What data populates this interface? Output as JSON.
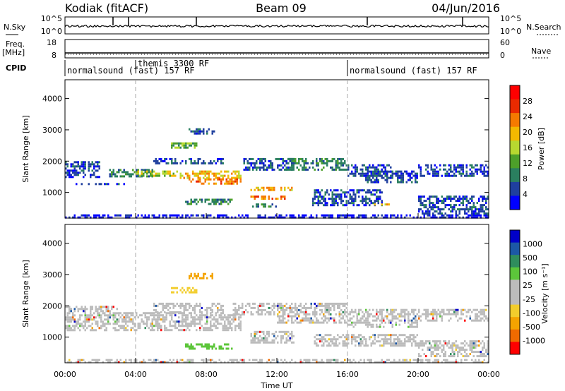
{
  "header": {
    "station": "Kodiak (fitACF)",
    "beam": "Beam 09",
    "date": "04/Jun/2016"
  },
  "colors": {
    "power_scale": [
      "#0000ff",
      "#1f3f9e",
      "#2a7f5f",
      "#4da02a",
      "#b7d830",
      "#f3b800",
      "#f57a00",
      "#ea2a00",
      "#ff0000"
    ],
    "velocity_scale": [
      "#ff0000",
      "#f06a00",
      "#f4a300",
      "#f2cd2c",
      "#bcbcbc",
      "#bcbcbc",
      "#5cc63a",
      "#2f8d5d",
      "#1c58a6",
      "#0000c8"
    ],
    "gridline": "#999999"
  },
  "panels": {
    "nsky": {
      "label": "N.Sky",
      "left_ticks": [
        "10^5",
        "10^0"
      ],
      "right_ticks": [
        "10^5",
        "10^0"
      ],
      "right_label": "N.Search"
    },
    "freq": {
      "label": "Freq.",
      "unit": "[MHz]",
      "left_ticks": [
        "18",
        "8"
      ],
      "right_ticks": [
        "60",
        "0"
      ],
      "right_label": "Nave"
    },
    "cpid": {
      "label": "CPID",
      "segments": [
        {
          "text": "normalsound (fast) 157 RF",
          "start_hour": 0
        },
        {
          "text": "themis 3300 RF",
          "start_hour": 4
        },
        {
          "text": "normalsound (fast) 157 RF",
          "start_hour": 16
        }
      ]
    },
    "power": {
      "ylabel": "Slant Range [km]",
      "colorbar_label": "Power [dB]",
      "colorbar_ticks": [
        "28",
        "24",
        "20",
        "16",
        "12",
        "8",
        "4"
      ]
    },
    "velocity": {
      "ylabel": "Slant Range [km]",
      "colorbar_label": "Velocity [m s⁻¹]",
      "colorbar_ticks": [
        "1000",
        "500",
        "100",
        "25",
        "-25",
        "-100",
        "-500",
        "-1000"
      ]
    }
  },
  "x_axis": {
    "label": "Time UT",
    "ticks": [
      "00:00",
      "04:00",
      "08:00",
      "12:00",
      "16:00",
      "20:00",
      "00:00"
    ]
  },
  "chart_data": [
    {
      "type": "heatmap",
      "name": "power",
      "x_range_hours": [
        0,
        24
      ],
      "ylim": [
        180,
        4600
      ],
      "yticks": [
        1000,
        2000,
        3000,
        4000
      ],
      "xlabel": "Time UT",
      "ylabel": "Slant Range [km]",
      "colorbar": {
        "label": "Power [dB]",
        "ticks": [
          28,
          24,
          20,
          16,
          12,
          8,
          4
        ]
      },
      "echo_bands": [
        {
          "t": [
            0.0,
            24.0
          ],
          "r": [
            180,
            300
          ],
          "value": 4
        },
        {
          "t": [
            0.0,
            2.0
          ],
          "r": [
            1500,
            2000
          ],
          "value": 8
        },
        {
          "t": [
            0.5,
            3.5
          ],
          "r": [
            1250,
            1300
          ],
          "value": 8
        },
        {
          "t": [
            2.5,
            5.0
          ],
          "r": [
            1500,
            1750
          ],
          "value": 12
        },
        {
          "t": [
            4.0,
            6.5
          ],
          "r": [
            1550,
            1700
          ],
          "value": 20
        },
        {
          "t": [
            5.0,
            9.0
          ],
          "r": [
            1900,
            2100
          ],
          "value": 8
        },
        {
          "t": [
            6.0,
            7.5
          ],
          "r": [
            2450,
            2600
          ],
          "value": 16
        },
        {
          "t": [
            6.5,
            10.0
          ],
          "r": [
            1450,
            1700
          ],
          "value": 24
        },
        {
          "t": [
            7.0,
            10.0
          ],
          "r": [
            1300,
            1450
          ],
          "value": 28
        },
        {
          "t": [
            6.8,
            9.5
          ],
          "r": [
            650,
            800
          ],
          "value": 12
        },
        {
          "t": [
            7.0,
            8.5
          ],
          "r": [
            2900,
            3050
          ],
          "value": 8
        },
        {
          "t": [
            10.0,
            13.0
          ],
          "r": [
            1700,
            2100
          ],
          "value": 8
        },
        {
          "t": [
            10.5,
            13.0
          ],
          "r": [
            1100,
            1180
          ],
          "value": 24
        },
        {
          "t": [
            10.5,
            12.5
          ],
          "r": [
            800,
            900
          ],
          "value": 28
        },
        {
          "t": [
            10.5,
            12.0
          ],
          "r": [
            550,
            650
          ],
          "value": 12
        },
        {
          "t": [
            12.5,
            16.0
          ],
          "r": [
            1750,
            2100
          ],
          "value": 12
        },
        {
          "t": [
            14.0,
            18.0
          ],
          "r": [
            600,
            1100
          ],
          "value": 8
        },
        {
          "t": [
            16.0,
            18.5
          ],
          "r": [
            1500,
            1900
          ],
          "value": 8
        },
        {
          "t": [
            17.0,
            20.0
          ],
          "r": [
            1350,
            1700
          ],
          "value": 8
        },
        {
          "t": [
            17.5,
            18.5
          ],
          "r": [
            600,
            650
          ],
          "value": 24
        },
        {
          "t": [
            20.0,
            24.0
          ],
          "r": [
            1500,
            1900
          ],
          "value": 8
        },
        {
          "t": [
            20.0,
            24.0
          ],
          "r": [
            300,
            900
          ],
          "value": 8
        }
      ]
    },
    {
      "type": "heatmap",
      "name": "velocity",
      "x_range_hours": [
        0,
        24
      ],
      "ylim": [
        180,
        4600
      ],
      "yticks": [
        1000,
        2000,
        3000,
        4000
      ],
      "xlabel": "Time UT",
      "ylabel": "Slant Range [km]",
      "colorbar": {
        "label": "Velocity [m s⁻¹]",
        "ticks": [
          1000,
          500,
          100,
          25,
          -25,
          -100,
          -500,
          -1000
        ]
      },
      "echo_bands": [
        {
          "t": [
            0.0,
            24.0
          ],
          "r": [
            180,
            300
          ],
          "value": 20
        },
        {
          "t": [
            0.0,
            3.0
          ],
          "r": [
            1200,
            2000
          ],
          "value": 0
        },
        {
          "t": [
            3.0,
            10.0
          ],
          "r": [
            1250,
            1800
          ],
          "value": 0
        },
        {
          "t": [
            5.0,
            9.0
          ],
          "r": [
            1800,
            2100
          ],
          "value": 0
        },
        {
          "t": [
            6.0,
            7.5
          ],
          "r": [
            2450,
            2600
          ],
          "value": -60
        },
        {
          "t": [
            6.8,
            9.5
          ],
          "r": [
            600,
            800
          ],
          "value": 80
        },
        {
          "t": [
            7.0,
            8.5
          ],
          "r": [
            2900,
            3050
          ],
          "value": -200
        },
        {
          "t": [
            9.5,
            16.0
          ],
          "r": [
            1700,
            2100
          ],
          "value": 0
        },
        {
          "t": [
            10.5,
            13.0
          ],
          "r": [
            800,
            1200
          ],
          "value": 0
        },
        {
          "t": [
            12.0,
            16.0
          ],
          "r": [
            1450,
            1700
          ],
          "value": 0
        },
        {
          "t": [
            16.0,
            20.0
          ],
          "r": [
            1350,
            1900
          ],
          "value": 0
        },
        {
          "t": [
            14.0,
            20.0
          ],
          "r": [
            700,
            1100
          ],
          "value": 0
        },
        {
          "t": [
            20.0,
            24.0
          ],
          "r": [
            1500,
            1900
          ],
          "value": 0
        },
        {
          "t": [
            20.0,
            24.0
          ],
          "r": [
            400,
            900
          ],
          "value": 0
        }
      ]
    }
  ]
}
